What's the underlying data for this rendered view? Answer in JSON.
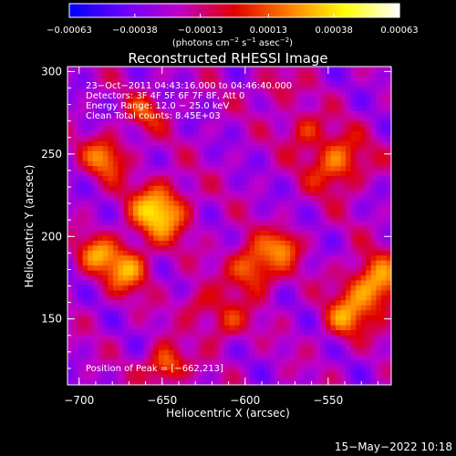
{
  "chart_data": {
    "type": "heatmap",
    "title": "Reconstructed RHESSI Image",
    "xlabel": "Heliocentric X (arcsec)",
    "ylabel": "Heliocentric Y (arcsec)",
    "xlim": [
      -707,
      -512
    ],
    "ylim": [
      110,
      303
    ],
    "xticks": [
      -700,
      -650,
      -600,
      -550
    ],
    "xtick_labels": [
      "−700",
      "−650",
      "−600",
      "−550"
    ],
    "yticks": [
      150,
      200,
      250,
      300
    ],
    "ytick_labels": [
      "150",
      "200",
      "250",
      "300"
    ],
    "colorbar": {
      "ticks": [
        -0.00063,
        -0.00038,
        -0.00013,
        0.00013,
        0.00038,
        0.00063
      ],
      "tick_labels": [
        "−0.00063",
        "−0.00038",
        "−0.00013",
        "0.00013",
        "0.00038",
        "0.00063"
      ],
      "range": [
        -0.00063,
        0.00063
      ],
      "colors": [
        "#0000ff",
        "#6a00ff",
        "#c000c8",
        "#e00000",
        "#ff8000",
        "#ffff00",
        "#ffffff"
      ]
    },
    "info_lines": [
      "23−Oct−2011 04:43:16.000 to 04:46:40.000",
      "Detectors: 3F 4F 5F 6F 7F 8F, Att 0",
      "Energy Range: 12.0 − 25.0 keV",
      "Clean    Total counts: 8.45E+03"
    ],
    "peak_label": "Position of Peak = [−662,213]",
    "peak": [
      -662,
      213
    ],
    "sources": [
      {
        "x": -652,
        "y": 215,
        "sigma": 12,
        "amp": 0.00063
      },
      {
        "x": -684,
        "y": 248,
        "sigma": 9,
        "amp": 0.00045
      },
      {
        "x": -672,
        "y": 180,
        "sigma": 10,
        "amp": 0.00048
      },
      {
        "x": -690,
        "y": 190,
        "sigma": 8,
        "amp": 0.0004
      },
      {
        "x": -594,
        "y": 182,
        "sigma": 11,
        "amp": 0.0005
      },
      {
        "x": -576,
        "y": 195,
        "sigma": 7,
        "amp": 0.00036
      },
      {
        "x": -522,
        "y": 170,
        "sigma": 12,
        "amp": 0.00058
      },
      {
        "x": -540,
        "y": 150,
        "sigma": 9,
        "amp": 0.0004
      },
      {
        "x": -545,
        "y": 245,
        "sigma": 12,
        "amp": 0.00046
      },
      {
        "x": -565,
        "y": 265,
        "sigma": 8,
        "amp": 0.0003
      },
      {
        "x": -648,
        "y": 122,
        "sigma": 8,
        "amp": 0.00048
      },
      {
        "x": -612,
        "y": 148,
        "sigma": 9,
        "amp": 0.00032
      },
      {
        "x": -660,
        "y": 275,
        "sigma": 8,
        "amp": 0.0003
      },
      {
        "x": -630,
        "y": 160,
        "sigma": 7,
        "amp": 0.00026
      },
      {
        "x": -582,
        "y": 290,
        "sigma": 8,
        "amp": 0.00022
      }
    ],
    "background": -0.00025
  },
  "footer": {
    "timestamp": "15−May−2022 10:18"
  }
}
